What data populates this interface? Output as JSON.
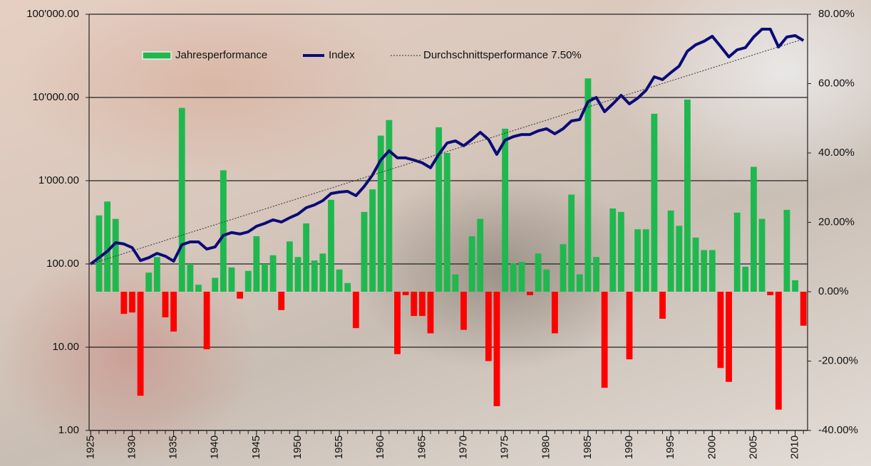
{
  "chart_data": {
    "type": "combo",
    "x": [
      1925,
      1926,
      1927,
      1928,
      1929,
      1930,
      1931,
      1932,
      1933,
      1934,
      1935,
      1936,
      1937,
      1938,
      1939,
      1940,
      1941,
      1942,
      1943,
      1944,
      1945,
      1946,
      1947,
      1948,
      1949,
      1950,
      1951,
      1952,
      1953,
      1954,
      1955,
      1956,
      1957,
      1958,
      1959,
      1960,
      1961,
      1962,
      1963,
      1964,
      1965,
      1966,
      1967,
      1968,
      1969,
      1970,
      1971,
      1972,
      1973,
      1974,
      1975,
      1976,
      1977,
      1978,
      1979,
      1980,
      1981,
      1982,
      1983,
      1984,
      1985,
      1986,
      1987,
      1988,
      1989,
      1990,
      1991,
      1992,
      1993,
      1994,
      1995,
      1996,
      1997,
      1998,
      1999,
      2000,
      2001,
      2002,
      2003,
      2004,
      2005,
      2006,
      2007,
      2008,
      2009,
      2010,
      2011
    ],
    "xlim": [
      1924.8,
      2011.5
    ],
    "xticks": [
      1925,
      1930,
      1935,
      1940,
      1945,
      1950,
      1955,
      1960,
      1965,
      1970,
      1975,
      1980,
      1985,
      1990,
      1995,
      2000,
      2005,
      2010
    ],
    "ylim": [
      1,
      100000
    ],
    "ylog": true,
    "yticks": [
      {
        "value": 1,
        "label": "1.00"
      },
      {
        "value": 10,
        "label": "10.00"
      },
      {
        "value": 100,
        "label": "100.00"
      },
      {
        "value": 1000,
        "label": "1'000.00"
      },
      {
        "value": 10000,
        "label": "10'000.00"
      },
      {
        "value": 100000,
        "label": "100'000.00"
      }
    ],
    "y2lim": [
      -40,
      80
    ],
    "y2ticks": [
      {
        "value": -40,
        "label": "-40.00%"
      },
      {
        "value": -20,
        "label": "-20.00%"
      },
      {
        "value": 0,
        "label": "0.00%"
      },
      {
        "value": 20,
        "label": "20.00%"
      },
      {
        "value": 40,
        "label": "40.00%"
      },
      {
        "value": 60,
        "label": "60.00%"
      },
      {
        "value": 80,
        "label": "80.00%"
      }
    ],
    "grid": true,
    "series": [
      {
        "name": "Jahresperformance",
        "type": "bar",
        "axis": "y2",
        "color": "#1fb84f",
        "negative_color": "#ff0000",
        "values": [
          null,
          22,
          26,
          21,
          -6.4,
          -6,
          -30,
          5.5,
          10,
          -7.4,
          -11.5,
          53,
          8,
          2,
          -16.6,
          4,
          35,
          7,
          -2,
          6,
          16,
          8,
          10.5,
          -5.3,
          14.5,
          10,
          19.7,
          9,
          11,
          26.5,
          6.4,
          2.5,
          -10.5,
          23,
          29.5,
          45,
          49.5,
          -18,
          -1,
          -7,
          -7,
          -12,
          47.4,
          40,
          5,
          -11,
          16,
          21,
          -20,
          -33,
          47,
          8.2,
          8.6,
          -1,
          11,
          6.4,
          -12,
          13.7,
          28,
          5,
          61.5,
          10,
          -27.7,
          24,
          23,
          -19.5,
          18,
          18,
          51.3,
          -7.8,
          23.4,
          19,
          55.4,
          15.6,
          12,
          12,
          -22,
          -26,
          22.8,
          7.2,
          36,
          21,
          -1,
          -34,
          23.6,
          3.3,
          -9.8
        ]
      },
      {
        "name": "Index",
        "type": "line",
        "color": "#0b0b78",
        "values": [
          100,
          119,
          142,
          180,
          174,
          157,
          110,
          119,
          134,
          124,
          108,
          170,
          184,
          184,
          151,
          160,
          220,
          238,
          229,
          243,
          284,
          307,
          339,
          319,
          359,
          397,
          473,
          512,
          576,
          702,
          730,
          744,
          662,
          855,
          1170,
          1770,
          2290,
          1880,
          1880,
          1770,
          1640,
          1430,
          2070,
          2840,
          3010,
          2630,
          3130,
          3810,
          3130,
          2070,
          3070,
          3390,
          3590,
          3590,
          3970,
          4210,
          3660,
          4210,
          5220,
          5430,
          8890,
          10000,
          6750,
          8380,
          10600,
          8380,
          9800,
          12200,
          17700,
          16400,
          19900,
          23800,
          36000,
          42900,
          47300,
          54300,
          41200,
          30700,
          37400,
          39700,
          53300,
          66200,
          66200,
          40400,
          53300,
          55400,
          48300
        ]
      },
      {
        "name": "Durchschnittsperformance 7.50%",
        "type": "dotted",
        "color": "#333333",
        "x": [
          1925,
          2011
        ],
        "values": [
          100,
          50300
        ]
      }
    ]
  }
}
